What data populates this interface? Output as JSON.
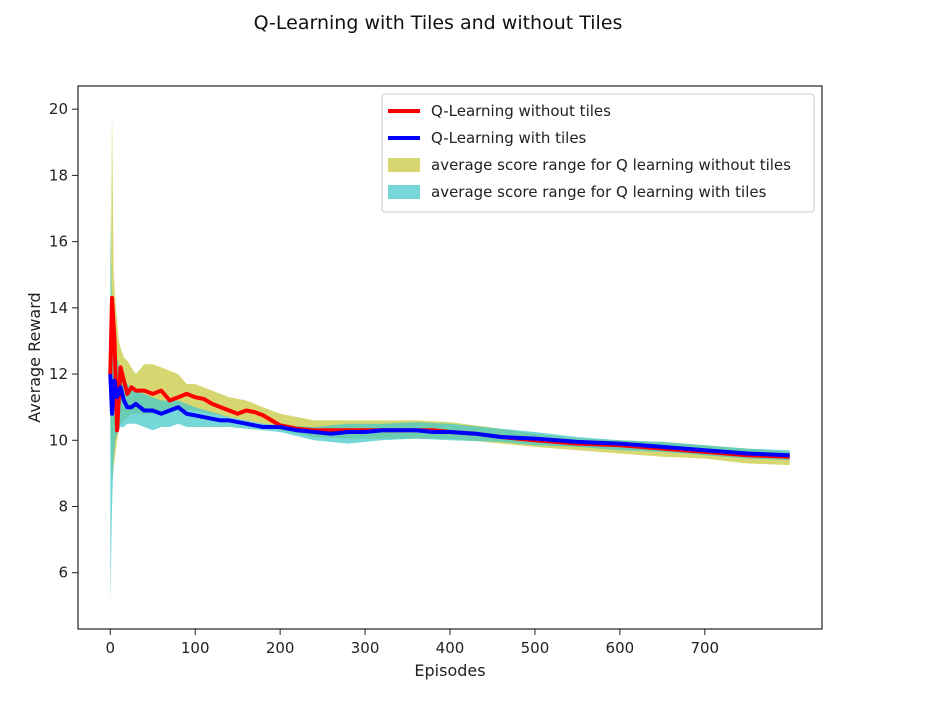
{
  "chart_data": {
    "type": "line",
    "title": "Q-Learning with Tiles and without Tiles",
    "xlabel": "Episodes",
    "ylabel": "Average Reward",
    "xlim": [
      -38,
      838
    ],
    "ylim": [
      4.3,
      20.7
    ],
    "xticks": [
      0,
      100,
      200,
      300,
      400,
      500,
      600,
      700
    ],
    "yticks": [
      6,
      8,
      10,
      12,
      14,
      16,
      18,
      20
    ],
    "legend_position": "top-right",
    "grid": false,
    "series": [
      {
        "name": "Q-Learning without tiles",
        "color": "#ff0000",
        "kind": "line",
        "x": [
          0,
          2,
          5,
          8,
          12,
          16,
          20,
          25,
          30,
          40,
          50,
          60,
          70,
          80,
          90,
          100,
          110,
          120,
          130,
          140,
          150,
          160,
          170,
          180,
          190,
          200,
          220,
          240,
          260,
          280,
          300,
          320,
          340,
          360,
          380,
          400,
          430,
          460,
          500,
          550,
          600,
          650,
          700,
          750,
          800
        ],
        "y": [
          12.0,
          14.3,
          13.0,
          10.3,
          12.2,
          11.8,
          11.4,
          11.6,
          11.5,
          11.5,
          11.4,
          11.5,
          11.2,
          11.3,
          11.4,
          11.3,
          11.25,
          11.1,
          11.0,
          10.9,
          10.8,
          10.9,
          10.85,
          10.75,
          10.6,
          10.45,
          10.35,
          10.3,
          10.3,
          10.3,
          10.3,
          10.3,
          10.3,
          10.3,
          10.3,
          10.25,
          10.2,
          10.1,
          10.0,
          9.9,
          9.85,
          9.75,
          9.65,
          9.55,
          9.5
        ]
      },
      {
        "name": "Q-Learning with tiles",
        "color": "#0000ff",
        "kind": "line",
        "x": [
          0,
          2,
          5,
          8,
          12,
          16,
          20,
          25,
          30,
          40,
          50,
          60,
          70,
          80,
          90,
          100,
          110,
          120,
          130,
          140,
          150,
          160,
          170,
          180,
          190,
          200,
          220,
          240,
          260,
          280,
          300,
          320,
          340,
          360,
          380,
          400,
          430,
          460,
          500,
          550,
          600,
          650,
          700,
          750,
          800
        ],
        "y": [
          12.0,
          10.8,
          11.8,
          11.3,
          11.6,
          11.2,
          11.0,
          11.0,
          11.1,
          10.9,
          10.9,
          10.8,
          10.9,
          11.0,
          10.8,
          10.75,
          10.7,
          10.65,
          10.6,
          10.6,
          10.55,
          10.5,
          10.45,
          10.4,
          10.4,
          10.4,
          10.3,
          10.25,
          10.2,
          10.25,
          10.25,
          10.3,
          10.3,
          10.3,
          10.25,
          10.25,
          10.2,
          10.1,
          10.05,
          9.95,
          9.9,
          9.8,
          9.7,
          9.6,
          9.55
        ]
      },
      {
        "name": "average score range for Q learning without tiles",
        "color": "#c8c83c",
        "kind": "band",
        "x": [
          0,
          2,
          4,
          6,
          8,
          10,
          12,
          16,
          20,
          25,
          30,
          40,
          50,
          60,
          70,
          80,
          90,
          100,
          120,
          140,
          160,
          180,
          200,
          240,
          280,
          320,
          360,
          400,
          460,
          500,
          550,
          600,
          650,
          700,
          750,
          800
        ],
        "lower": [
          10.5,
          8.8,
          9.2,
          9.6,
          10.0,
          10.3,
          10.5,
          10.6,
          10.7,
          10.8,
          10.8,
          10.8,
          10.8,
          10.9,
          10.9,
          10.9,
          10.9,
          10.9,
          10.8,
          10.7,
          10.6,
          10.5,
          10.3,
          10.1,
          10.05,
          10.05,
          10.05,
          10.05,
          9.9,
          9.8,
          9.7,
          9.6,
          9.5,
          9.45,
          9.3,
          9.25
        ],
        "upper": [
          12.5,
          20.0,
          15.0,
          14.2,
          13.6,
          13.0,
          12.8,
          12.5,
          12.4,
          12.2,
          12.0,
          12.3,
          12.3,
          12.2,
          12.1,
          12.0,
          11.7,
          11.7,
          11.5,
          11.3,
          11.2,
          11.0,
          10.8,
          10.6,
          10.6,
          10.6,
          10.6,
          10.55,
          10.35,
          10.2,
          10.05,
          10.0,
          9.95,
          9.85,
          9.75,
          9.65
        ]
      },
      {
        "name": "average score range for Q learning with tiles",
        "color": "#40c8c8",
        "kind": "band",
        "x": [
          0,
          2,
          4,
          6,
          8,
          10,
          12,
          16,
          20,
          25,
          30,
          40,
          50,
          60,
          70,
          80,
          90,
          100,
          120,
          140,
          160,
          180,
          200,
          240,
          280,
          320,
          360,
          400,
          460,
          500,
          550,
          600,
          650,
          700,
          750,
          800
        ],
        "lower": [
          5.0,
          8.0,
          9.5,
          10.0,
          10.2,
          10.3,
          10.4,
          10.4,
          10.5,
          10.5,
          10.5,
          10.4,
          10.3,
          10.4,
          10.4,
          10.5,
          10.4,
          10.4,
          10.4,
          10.4,
          10.35,
          10.3,
          10.25,
          10.0,
          9.9,
          10.0,
          10.05,
          10.0,
          9.95,
          9.85,
          9.8,
          9.7,
          9.65,
          9.55,
          9.45,
          9.4
        ],
        "upper": [
          17.0,
          13.5,
          13.0,
          12.7,
          12.5,
          12.3,
          12.1,
          11.9,
          11.7,
          11.6,
          11.5,
          11.4,
          11.3,
          11.2,
          11.2,
          11.2,
          11.1,
          11.0,
          10.85,
          10.7,
          10.6,
          10.5,
          10.45,
          10.4,
          10.5,
          10.5,
          10.55,
          10.5,
          10.35,
          10.25,
          10.1,
          10.0,
          9.95,
          9.85,
          9.75,
          9.7
        ]
      }
    ]
  }
}
